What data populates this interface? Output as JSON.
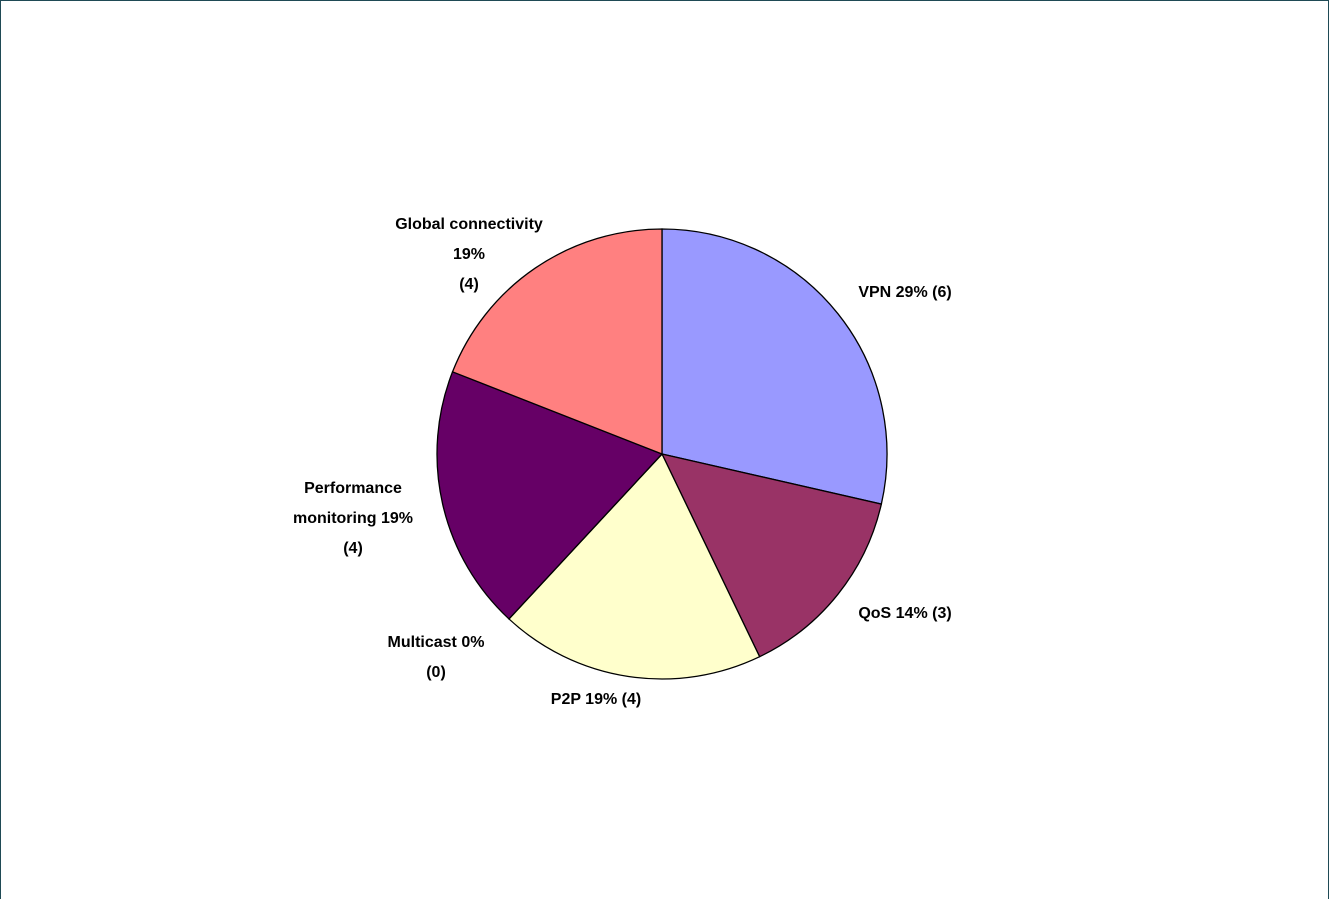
{
  "chart_data": {
    "type": "pie",
    "values": [
      6,
      3,
      4,
      0,
      4,
      4
    ],
    "labels": [
      [
        "VPN 29% (6)"
      ],
      [
        "QoS  14% (3)"
      ],
      [
        "P2P 19% (4)"
      ],
      [
        "Multicast 0%",
        "(0)"
      ],
      [
        "Performance",
        "monitoring 19%",
        "(4)"
      ],
      [
        "Global connectivity",
        "19%",
        "(4)"
      ]
    ],
    "colors": [
      "#9999ff",
      "#993366",
      "#ffffcc",
      "#ffffff",
      "#660066",
      "#ff8080"
    ]
  }
}
